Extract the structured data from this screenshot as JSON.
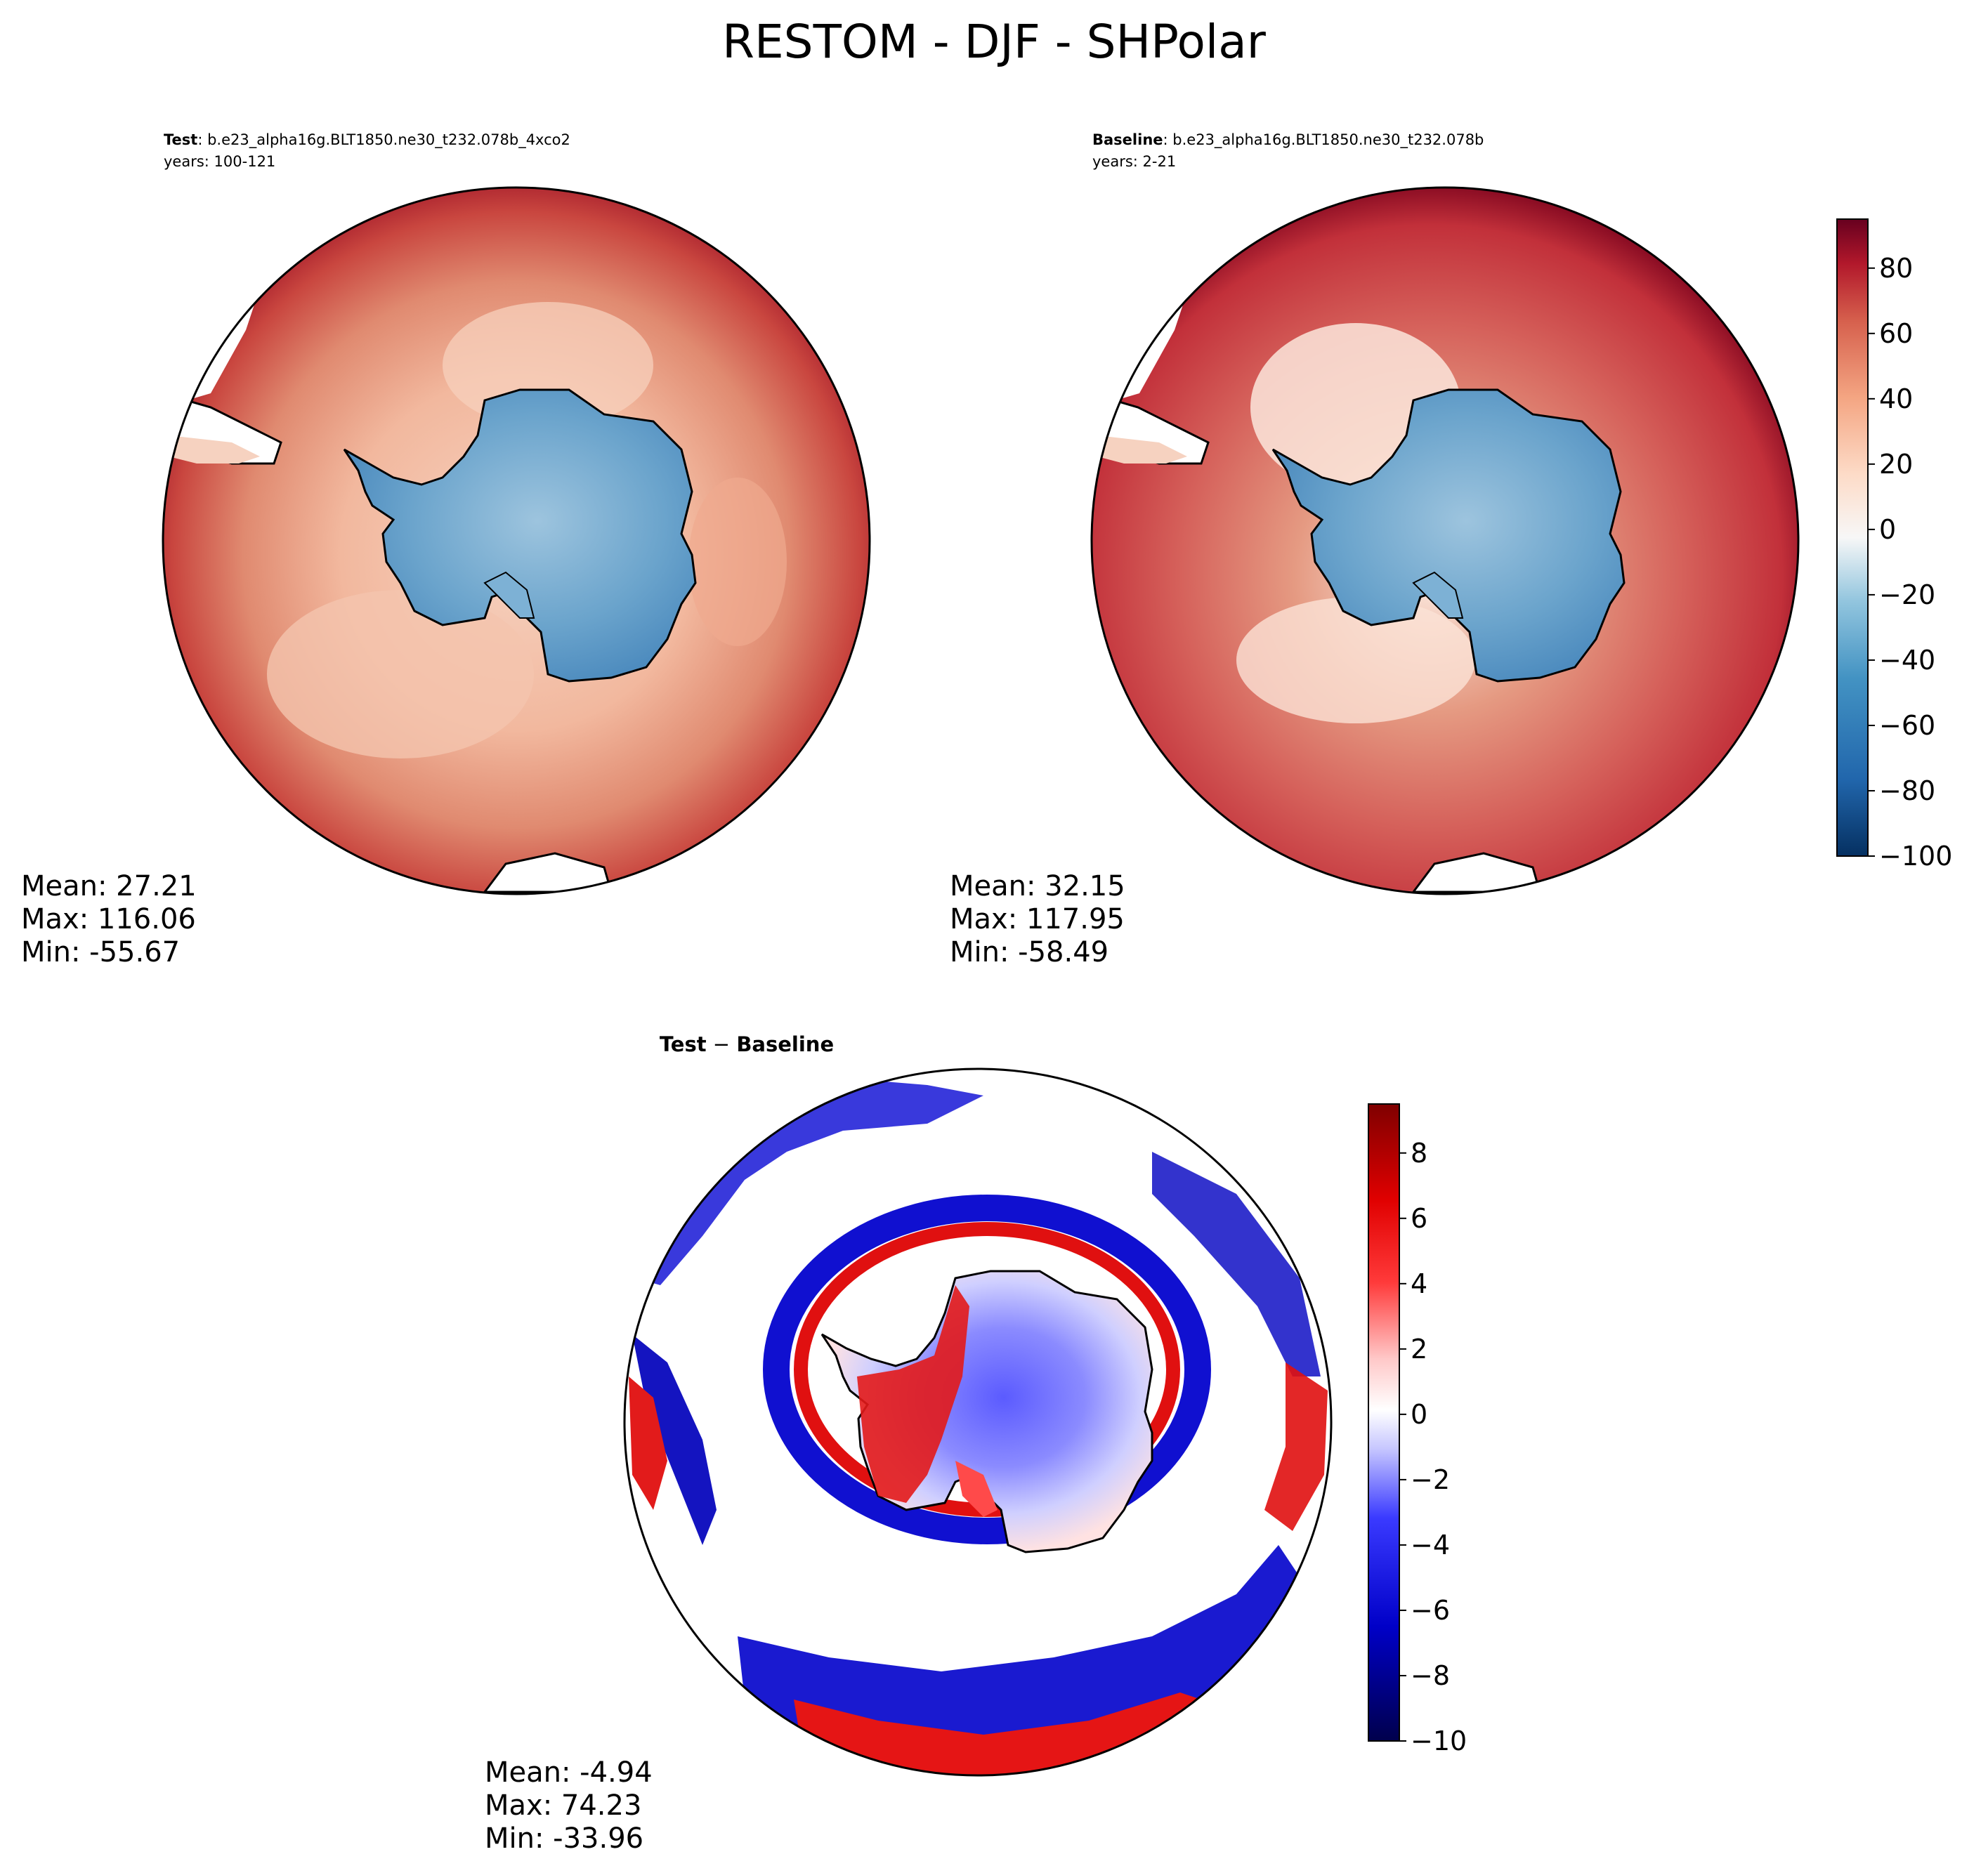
{
  "figure": {
    "title": "RESTOM - DJF - SHPolar"
  },
  "panels": {
    "test": {
      "label": "Test",
      "separator": ": ",
      "case_name": "b.e23_alpha16g.BLT1850.ne30_t232.078b_4xco2",
      "years": "years: 100-121",
      "mean": "Mean: 27.21",
      "max": "Max: 116.06",
      "min": "Min: -55.67"
    },
    "baseline": {
      "label": "Baseline",
      "separator": ": ",
      "case_name": "b.e23_alpha16g.BLT1850.ne30_t232.078b",
      "years": "years: 2-21",
      "mean": "Mean: 32.15",
      "max": "Max: 117.95",
      "min": "Min: -58.49"
    },
    "diff": {
      "title_test": "Test",
      "title_minus": " − ",
      "title_baseline": "Baseline",
      "mean": "Mean: -4.94",
      "max": "Max: 74.23",
      "min": "Min: -33.96"
    }
  },
  "colors": {
    "ocean_red": "#c23b3b",
    "land_blue": "#5d98c6",
    "diff_red": "#e01010",
    "diff_blue": "#1010d0"
  },
  "chart_data": [
    {
      "type": "heatmap",
      "title": "Test: b.e23_alpha16g.BLT1850.ne30_t232.078b_4xco2 years: 100-121",
      "projection": "south polar stereographic",
      "stats": {
        "mean": 27.21,
        "max": 116.06,
        "min": -55.67
      },
      "colorbar": {
        "colormap": "RdBu_r",
        "range": [
          -100,
          95
        ],
        "ticks": [
          80,
          60,
          40,
          20,
          0,
          -20,
          -40,
          -60,
          -80,
          -100
        ]
      }
    },
    {
      "type": "heatmap",
      "title": "Baseline: b.e23_alpha16g.BLT1850.ne30_t232.078b years: 2-21",
      "projection": "south polar stereographic",
      "stats": {
        "mean": 32.15,
        "max": 117.95,
        "min": -58.49
      },
      "colorbar": {
        "colormap": "RdBu_r",
        "range": [
          -100,
          95
        ],
        "ticks": [
          80,
          60,
          40,
          20,
          0,
          -20,
          -40,
          -60,
          -80,
          -100
        ]
      }
    },
    {
      "type": "heatmap",
      "title": "Test − Baseline",
      "projection": "south polar stereographic",
      "stats": {
        "mean": -4.94,
        "max": 74.23,
        "min": -33.96
      },
      "colorbar": {
        "colormap": "seismic",
        "range": [
          -10,
          9.5
        ],
        "ticks": [
          8,
          6,
          4,
          2,
          0,
          -2,
          -4,
          -6,
          -8,
          -10
        ]
      }
    }
  ],
  "colorbar_labels": {
    "top": [
      "80",
      "60",
      "40",
      "20",
      "0",
      "−20",
      "−40",
      "−60",
      "−80",
      "−100"
    ],
    "diff": [
      "8",
      "6",
      "4",
      "2",
      "0",
      "−2",
      "−4",
      "−6",
      "−8",
      "−10"
    ]
  }
}
